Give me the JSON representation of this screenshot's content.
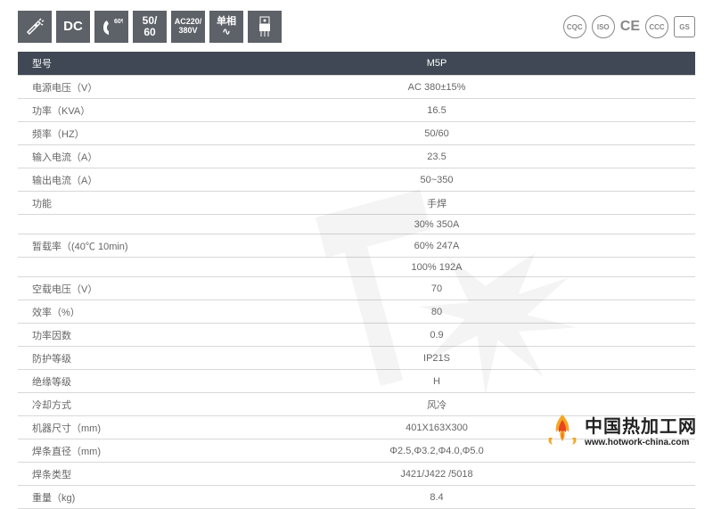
{
  "icons": [
    {
      "name": "welding-icon",
      "type": "svg"
    },
    {
      "name": "dc-icon",
      "text": "DC"
    },
    {
      "name": "duty-icon",
      "text": "60%"
    },
    {
      "name": "freq-icon",
      "text": "50/\n60"
    },
    {
      "name": "voltage-icon",
      "text": "AC220/\n380V"
    },
    {
      "name": "phase-icon",
      "text": "单相\n∿"
    },
    {
      "name": "igbt-icon",
      "type": "svg"
    }
  ],
  "certs": [
    {
      "name": "cqc-cert",
      "text": "CQC"
    },
    {
      "name": "iso-cert",
      "text": "ISO"
    },
    {
      "name": "ce-cert",
      "text": "CE",
      "cls": "ce"
    },
    {
      "name": "ccc-cert",
      "text": "CCC"
    },
    {
      "name": "gs-cert",
      "text": "GS",
      "cls": "sq"
    }
  ],
  "header": {
    "label": "型号",
    "value": "M5P"
  },
  "specs": [
    {
      "label": "电源电压（V）",
      "value": "AC 380±15%"
    },
    {
      "label": "功率（KVA）",
      "value": "16.5"
    },
    {
      "label": "频率（HZ）",
      "value": "50/60"
    },
    {
      "label": "输入电流（A）",
      "value": "23.5"
    },
    {
      "label": "输出电流（A）",
      "value": "50~350"
    },
    {
      "label": "功能",
      "value": "手焊"
    },
    {
      "label": "",
      "value": "30% 350A"
    },
    {
      "label": "暂载率（(40℃ 10min)",
      "value": "60% 247A"
    },
    {
      "label": "",
      "value": "100% 192A"
    },
    {
      "label": "空载电压（V）",
      "value": "70"
    },
    {
      "label": "效率（%）",
      "value": "80"
    },
    {
      "label": "功率因数",
      "value": "0.9"
    },
    {
      "label": "防护等级",
      "value": "IP21S"
    },
    {
      "label": "绝缘等级",
      "value": "H"
    },
    {
      "label": "冷却方式",
      "value": "风冷"
    },
    {
      "label": "机器尺寸（mm)",
      "value": "401X163X300"
    },
    {
      "label": "焊条直径（mm)",
      "value": "Φ2.5,Φ3.2,Φ4.0,Φ5.0"
    },
    {
      "label": "焊条类型",
      "value": "J421/J422 /5018"
    },
    {
      "label": "重量（kg)",
      "value": "8.4"
    }
  ],
  "logo": {
    "cn": "中国热加工网",
    "url": "www.hotwork-china.com"
  },
  "colors": {
    "header_bg": "#3f4854",
    "border": "#d8d8d8",
    "text": "#666666",
    "icon_bg": "#5d6268"
  }
}
